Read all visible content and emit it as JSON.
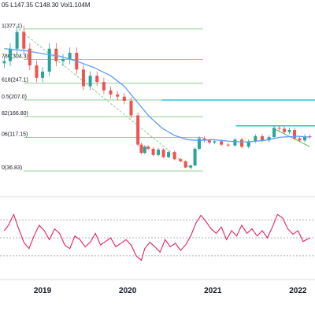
{
  "header": {
    "ohlc_text": "05  L147.35  C148.30  Vol1.104M"
  },
  "chart_data": [
    {
      "type": "line",
      "name_hint": "price",
      "x_ticks": [
        "2019",
        "2020",
        "2021",
        "2022"
      ],
      "fib_levels": [
        {
          "ratio": "1",
          "value": 377.1,
          "label": "1(377.1)"
        },
        {
          "ratio": "0.786",
          "value": 304.3,
          "label": "786(304.3)"
        },
        {
          "ratio": "0.618",
          "value": 247.1,
          "label": "618(247.1)"
        },
        {
          "ratio": "0.5",
          "value": 207.0,
          "label": "0.5(207.0)"
        },
        {
          "ratio": "0.382",
          "value": 166.8,
          "label": "82(166.80)"
        },
        {
          "ratio": "0.236",
          "value": 117.15,
          "label": "06(117.15)"
        },
        {
          "ratio": "0",
          "value": 36.83,
          "label": "0(36.83)"
        }
      ],
      "price_series": {
        "t": [
          2018.55,
          2018.62,
          2018.7,
          2018.78,
          2018.85,
          2018.93,
          2019.0,
          2019.08,
          2019.16,
          2019.24,
          2019.32,
          2019.4,
          2019.48,
          2019.56,
          2019.64,
          2019.72,
          2019.8,
          2019.88,
          2019.96,
          2020.04,
          2020.12,
          2020.16,
          2020.2,
          2020.24,
          2020.3,
          2020.36,
          2020.42,
          2020.48,
          2020.55,
          2020.62,
          2020.68,
          2020.74,
          2020.79,
          2020.84,
          2020.9,
          2020.96,
          2021.02,
          2021.1,
          2021.18,
          2021.26,
          2021.34,
          2021.42,
          2021.5,
          2021.58,
          2021.66,
          2021.72,
          2021.78,
          2021.84,
          2021.9,
          2021.96,
          2022.02,
          2022.08,
          2022.14
        ],
        "close": [
          300,
          330,
          370,
          330,
          290,
          260,
          275,
          330,
          300,
          305,
          320,
          280,
          240,
          265,
          250,
          230,
          220,
          215,
          205,
          170,
          100,
          80,
          95,
          90,
          75,
          88,
          70,
          82,
          65,
          60,
          45,
          50,
          90,
          115,
          110,
          105,
          108,
          100,
          98,
          112,
          95,
          108,
          120,
          110,
          118,
          140,
          138,
          130,
          135,
          115,
          110,
          120,
          118
        ]
      },
      "ma_series": {
        "t": [
          2018.55,
          2018.8,
          2019.0,
          2019.2,
          2019.4,
          2019.6,
          2019.8,
          2019.96,
          2020.1,
          2020.25,
          2020.4,
          2020.55,
          2020.7,
          2020.85,
          2021.0,
          2021.2,
          2021.4,
          2021.6,
          2021.8,
          2022.0,
          2022.14
        ],
        "value": [
          330,
          325,
          318,
          312,
          300,
          285,
          265,
          240,
          205,
          168,
          140,
          122,
          112,
          110,
          112,
          108,
          106,
          110,
          118,
          120,
          118
        ]
      },
      "resistance_lines": [
        {
          "from": 2020.4,
          "to": 2022.14,
          "value": 207.0
        },
        {
          "from": 2021.27,
          "to": 2022.14,
          "value": 145.0
        }
      ],
      "colors": {
        "up": "#26a69a",
        "down": "#ef5350",
        "ma": "#5b9cf6",
        "fib": "#81c784",
        "resistance": "#26c6da",
        "rsi": "#e91e63"
      }
    },
    {
      "type": "line",
      "name_hint": "oscillator",
      "levels": [
        70,
        50,
        30
      ],
      "series": {
        "t": [
          2018.55,
          2018.6,
          2018.66,
          2018.72,
          2018.78,
          2018.84,
          2018.9,
          2018.96,
          2019.02,
          2019.08,
          2019.14,
          2019.2,
          2019.26,
          2019.32,
          2019.38,
          2019.44,
          2019.5,
          2019.56,
          2019.62,
          2019.68,
          2019.74,
          2019.8,
          2019.86,
          2019.92,
          2019.98,
          2020.04,
          2020.1,
          2020.16,
          2020.2,
          2020.26,
          2020.32,
          2020.38,
          2020.44,
          2020.5,
          2020.56,
          2020.62,
          2020.68,
          2020.74,
          2020.8,
          2020.86,
          2020.92,
          2020.98,
          2021.04,
          2021.1,
          2021.16,
          2021.22,
          2021.28,
          2021.34,
          2021.4,
          2021.46,
          2021.52,
          2021.58,
          2021.64,
          2021.7,
          2021.76,
          2021.82,
          2021.88,
          2021.94,
          2022.0,
          2022.06,
          2022.14
        ],
        "value": [
          58,
          64,
          76,
          60,
          45,
          38,
          52,
          64,
          58,
          48,
          60,
          55,
          42,
          38,
          52,
          48,
          40,
          45,
          55,
          42,
          46,
          50,
          40,
          44,
          48,
          42,
          30,
          25,
          38,
          45,
          40,
          34,
          48,
          40,
          44,
          36,
          42,
          52,
          66,
          75,
          68,
          60,
          55,
          62,
          48,
          58,
          52,
          64,
          55,
          60,
          52,
          58,
          50,
          62,
          76,
          72,
          60,
          54,
          58,
          46,
          50
        ]
      }
    }
  ]
}
